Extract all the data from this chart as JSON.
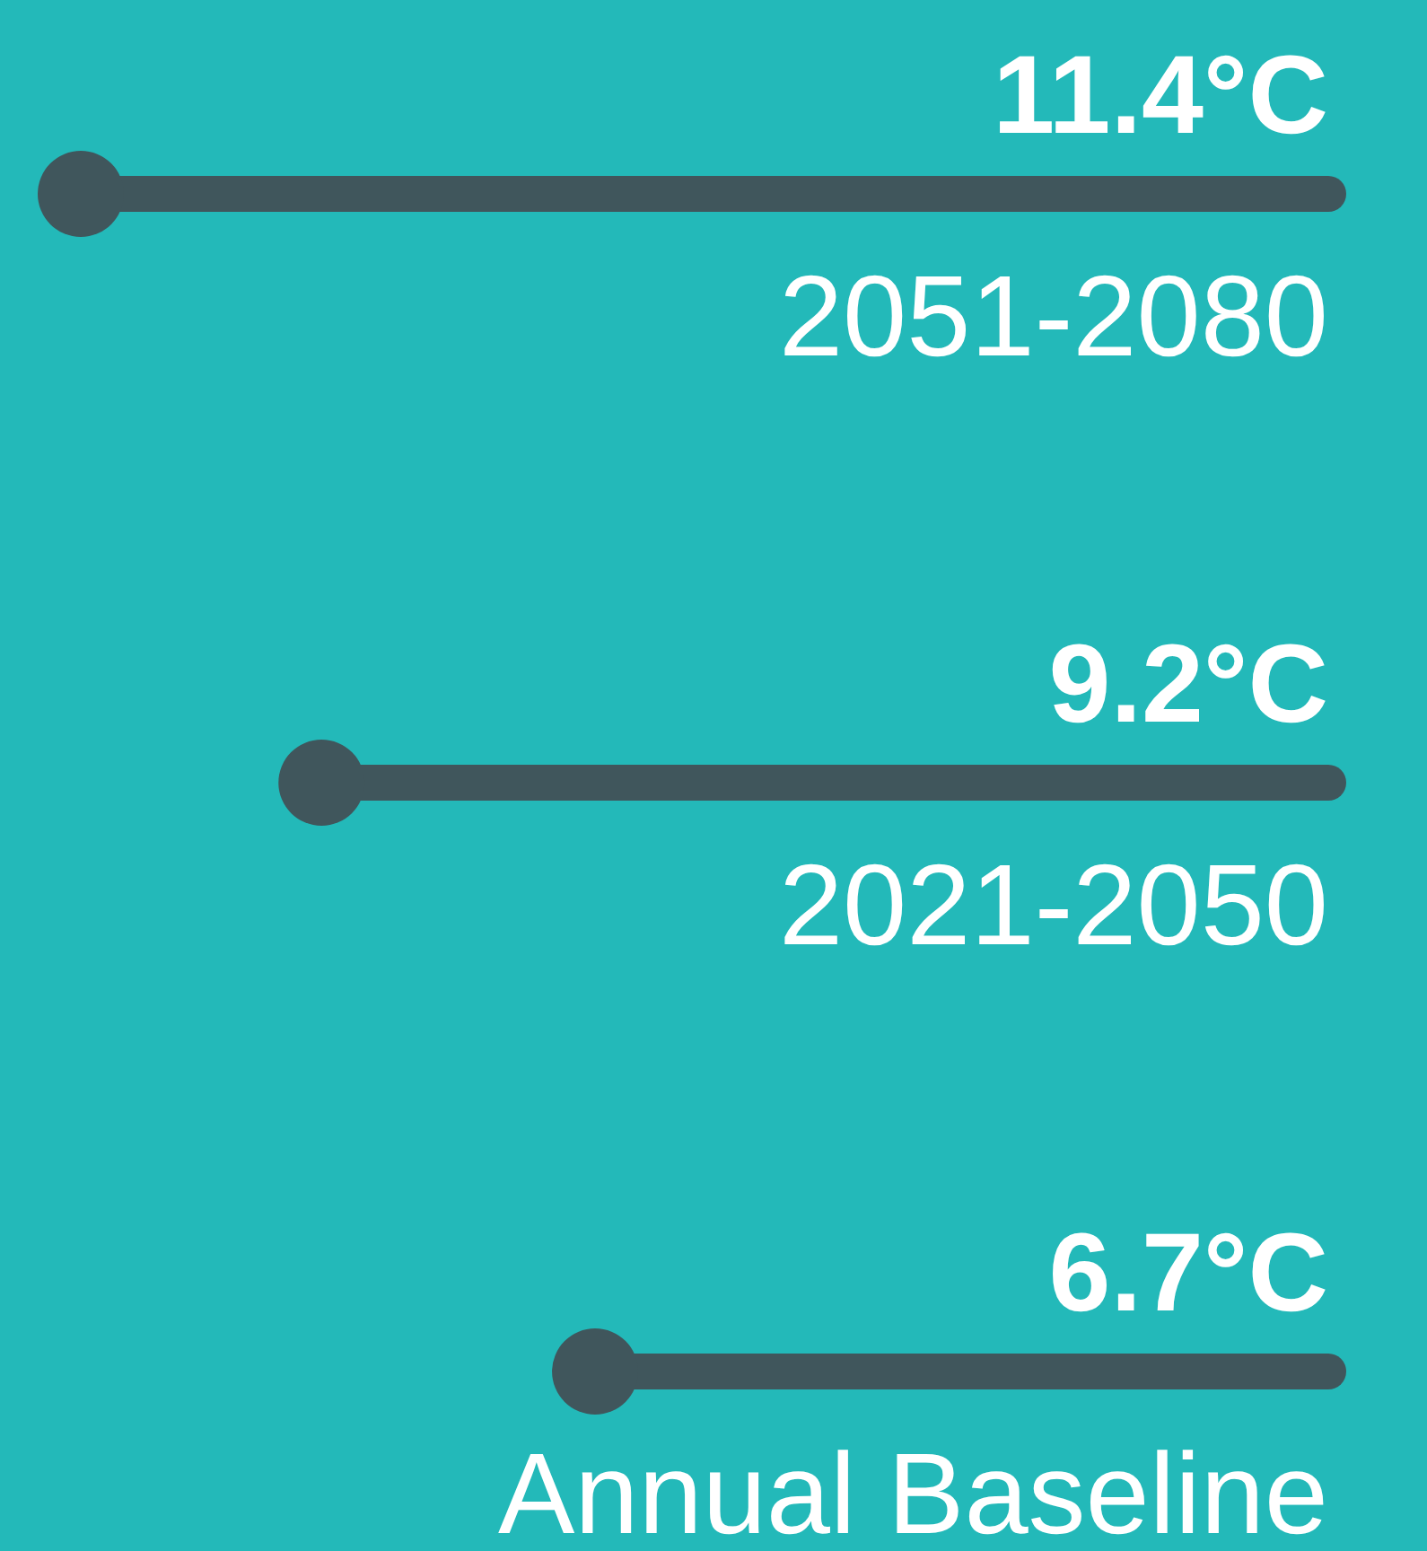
{
  "chart_data": {
    "type": "other",
    "categories": [
      "2051-2080",
      "2021-2050",
      "Annual Baseline"
    ],
    "values": [
      11.4,
      9.2,
      6.7
    ],
    "value_labels": [
      "11.4°C",
      "9.2°C",
      "6.7°C"
    ],
    "color": "#40565c"
  }
}
